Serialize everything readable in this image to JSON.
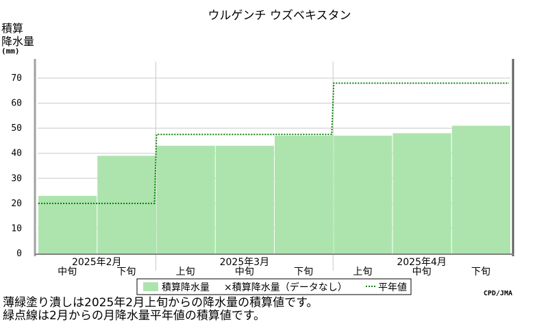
{
  "chart_data": {
    "type": "bar",
    "title": "ウルゲンチ ウズベキスタン",
    "ylabel_lines": [
      "積算",
      "降水量"
    ],
    "yunit": "(mm)",
    "ylim": [
      0,
      70
    ],
    "yticks": [
      0,
      10,
      20,
      30,
      40,
      50,
      60,
      70
    ],
    "grid": true,
    "periods": [
      "中旬",
      "下旬",
      "上旬",
      "中旬",
      "下旬",
      "上旬",
      "中旬",
      "下旬"
    ],
    "months": [
      {
        "label": "2025年2月",
        "start": 0,
        "end": 2
      },
      {
        "label": "2025年3月",
        "start": 2,
        "end": 5
      },
      {
        "label": "2025年4月",
        "start": 5,
        "end": 8
      }
    ],
    "series": [
      {
        "name": "積算降水量",
        "kind": "bar",
        "color": "#ade4ad",
        "values": [
          23,
          39,
          43,
          43,
          47,
          47,
          48,
          51
        ]
      },
      {
        "name": "積算降水量平年値",
        "kind": "step-dotted",
        "color": "#008000",
        "values": [
          20,
          20,
          47.5,
          47.5,
          47.5,
          68,
          68,
          68
        ]
      }
    ],
    "legend": {
      "items": [
        {
          "label": "積算降水量",
          "swatch": "#ade4ad"
        },
        {
          "label": "×積算降水量（データなし）",
          "swatch": null
        },
        {
          "label": "平年値",
          "swatch": "dotted"
        }
      ]
    },
    "credit": "CPD/JMA",
    "notes": [
      "薄緑塗り潰しは2025年2月上旬からの降水量の積算値です。",
      "緑点線は2月からの月降水量平年値の積算値です。"
    ]
  }
}
